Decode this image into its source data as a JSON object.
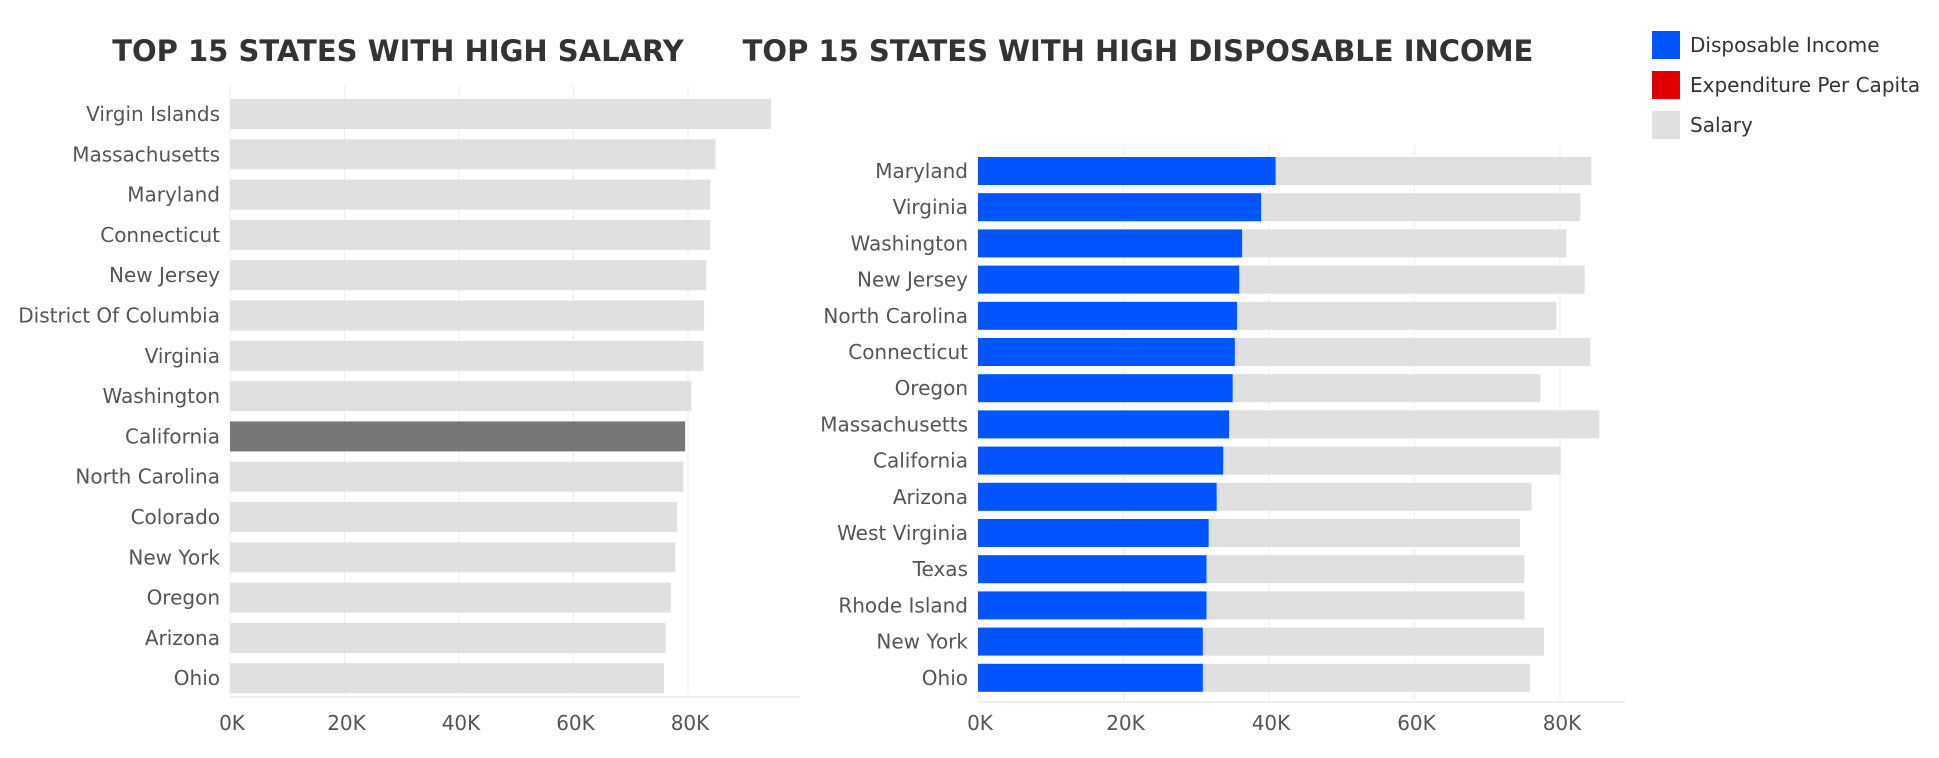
{
  "chart_data": [
    {
      "type": "bar",
      "orientation": "horizontal",
      "title": "TOP 15 STATES WITH HIGH SALARY",
      "categories": [
        "Virgin Islands",
        "Massachusetts",
        "Maryland",
        "Connecticut",
        "New Jersey",
        "District Of Columbia",
        "Virginia",
        "Washington",
        "California",
        "North Carolina",
        "Colorado",
        "New York",
        "Oregon",
        "Arizona",
        "Ohio"
      ],
      "series": [
        {
          "name": "Salary",
          "values": [
            94500,
            84800,
            83900,
            83900,
            83200,
            82800,
            82700,
            80600,
            79500,
            79200,
            78100,
            77800,
            77000,
            76100,
            75800
          ]
        }
      ],
      "highlighted_category": "California",
      "xlim": [
        0,
        100000
      ],
      "xticks": [
        0,
        20000,
        40000,
        60000,
        80000
      ],
      "xtick_labels": [
        "0K",
        "20K",
        "40K",
        "60K",
        "80K"
      ],
      "grid": "vertical"
    },
    {
      "type": "bar",
      "orientation": "horizontal",
      "title": "TOP 15 STATES WITH HIGH DISPOSABLE INCOME",
      "categories": [
        "Maryland",
        "Virginia",
        "Washington",
        "New Jersey",
        "North Carolina",
        "Connecticut",
        "Oregon",
        "Massachusetts",
        "California",
        "Arizona",
        "West Virginia",
        "Texas",
        "Rhode Island",
        "New York",
        "Ohio"
      ],
      "series": [
        {
          "name": "Salary",
          "values": [
            84300,
            82800,
            80900,
            83400,
            79500,
            84200,
            77300,
            85400,
            80100,
            76100,
            74500,
            75100,
            75100,
            77800,
            75900
          ]
        },
        {
          "name": "Disposable Income",
          "values": [
            40900,
            38900,
            36300,
            35900,
            35600,
            35300,
            35000,
            34500,
            33700,
            32800,
            31700,
            31400,
            31400,
            30900,
            30900
          ]
        }
      ],
      "xlim": [
        0,
        89000
      ],
      "xticks": [
        0,
        20000,
        40000,
        60000,
        80000
      ],
      "xtick_labels": [
        "0K",
        "20K",
        "40K",
        "60K",
        "80K"
      ],
      "grid": "vertical"
    }
  ],
  "legend": {
    "placement": "top-right",
    "items": [
      {
        "label": "Disposable Income",
        "color": "#0055ff"
      },
      {
        "label": "Expenditure Per Capita",
        "color": "#e00000"
      },
      {
        "label": "Salary",
        "color": "#e0e0e0"
      }
    ]
  },
  "colors": {
    "salary": "#e0e0e0",
    "highlight": "#777777",
    "disposable": "#0055ff",
    "grid": "#eeeeee",
    "axis": "#dddddd"
  }
}
